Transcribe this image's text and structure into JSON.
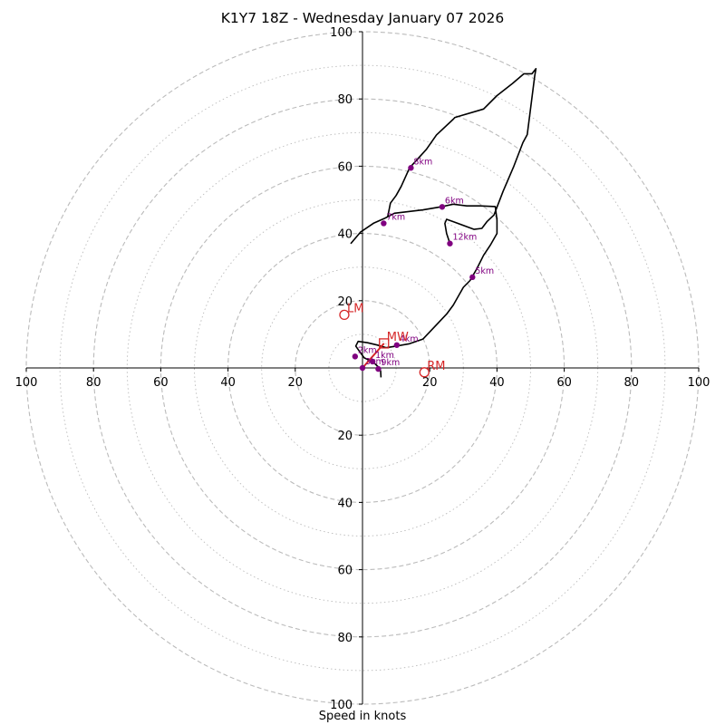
{
  "chart_data": {
    "type": "hodograph",
    "title": "K1Y7 18Z - Wednesday January 07 2026",
    "xlabel": "Speed in knots",
    "range": 100,
    "dashed_rings": [
      20,
      40,
      60,
      80,
      100
    ],
    "dotted_rings": [
      10,
      30,
      50,
      70,
      90
    ],
    "tick_labels": [
      "20",
      "40",
      "60",
      "80",
      "100"
    ],
    "hodograph_line": [
      [
        5.5,
        -2.8
      ],
      [
        5.4,
        -0.9
      ],
      [
        4.5,
        0.5
      ],
      [
        3,
        1.9
      ],
      [
        0.5,
        3
      ],
      [
        -0.8,
        4.8
      ],
      [
        -2,
        6.5
      ],
      [
        -1.3,
        7.9
      ],
      [
        1.5,
        7.5
      ],
      [
        4.5,
        6.8
      ],
      [
        7,
        6
      ],
      [
        10,
        6.5
      ],
      [
        14,
        7.2
      ],
      [
        18,
        8.6
      ],
      [
        25,
        16
      ],
      [
        27,
        18.7
      ],
      [
        30,
        24
      ],
      [
        32,
        26
      ],
      [
        34,
        29.5
      ],
      [
        36,
        33.5
      ],
      [
        38,
        36.5
      ],
      [
        40,
        40
      ],
      [
        40,
        44
      ],
      [
        39.5,
        48
      ],
      [
        35,
        48.2
      ],
      [
        31,
        48.2
      ],
      [
        27,
        48.7
      ],
      [
        23.8,
        48
      ],
      [
        18,
        47
      ],
      [
        9.5,
        46
      ],
      [
        6.6,
        44.5
      ],
      [
        3.4,
        43.1
      ],
      [
        -0.6,
        40.4
      ],
      [
        -3.4,
        37.1
      ],
      [
        -0.6,
        40.4
      ],
      [
        3.4,
        43.1
      ],
      [
        6.6,
        44.5
      ],
      [
        7.5,
        45
      ],
      [
        8.3,
        49
      ],
      [
        10,
        51.3
      ],
      [
        11.5,
        54
      ],
      [
        14,
        59.5
      ],
      [
        19,
        65
      ],
      [
        22,
        69.3
      ],
      [
        27,
        74
      ],
      [
        27.5,
        74.5
      ],
      [
        36,
        77
      ],
      [
        40,
        81
      ],
      [
        44.6,
        84.6
      ],
      [
        48,
        87.5
      ],
      [
        50.4,
        87.5
      ],
      [
        51.6,
        89
      ],
      [
        51.2,
        86.8
      ],
      [
        49,
        69.4
      ],
      [
        47.7,
        67
      ],
      [
        45,
        60
      ],
      [
        41.8,
        52.5
      ],
      [
        39.1,
        45.5
      ],
      [
        37,
        43.5
      ],
      [
        35.5,
        41.5
      ],
      [
        33.2,
        41.2
      ],
      [
        27,
        43.5
      ],
      [
        25,
        44.2
      ],
      [
        24.5,
        43
      ],
      [
        25,
        40
      ],
      [
        26,
        37
      ]
    ],
    "height_points": [
      {
        "label": "1km",
        "u": 3,
        "v": 1.9
      },
      {
        "label": "2km",
        "u": -2.2,
        "v": 3.4
      },
      {
        "label": "3km",
        "u": 0,
        "v": 0
      },
      {
        "label": "4km",
        "u": 10.2,
        "v": 6.8
      },
      {
        "label": "5km",
        "u": 32.7,
        "v": 27
      },
      {
        "label": "6km",
        "u": 23.7,
        "v": 47.9
      },
      {
        "label": "7km",
        "u": 6.3,
        "v": 43
      },
      {
        "label": "8km",
        "u": 14.4,
        "v": 59.5
      },
      {
        "label": "9km",
        "u": 4.7,
        "v": -0.3
      },
      {
        "label": "12km",
        "u": 26,
        "v": 37
      }
    ],
    "shear_vector": [
      [
        0,
        0
      ],
      [
        6.4,
        7.3
      ]
    ],
    "storm_motion": [
      {
        "label": "LM",
        "u": -5.4,
        "v": 15.8,
        "marker": "circle"
      },
      {
        "label": "MW",
        "u": 6.4,
        "v": 7.3,
        "marker": "square"
      },
      {
        "label": "RM",
        "u": 18.4,
        "v": -1.3,
        "marker": "circle"
      }
    ],
    "colors": {
      "line": "#000000",
      "points": "#800080",
      "storm": "#d62728",
      "grid": "#bbbbbb",
      "axis": "#000000"
    }
  }
}
